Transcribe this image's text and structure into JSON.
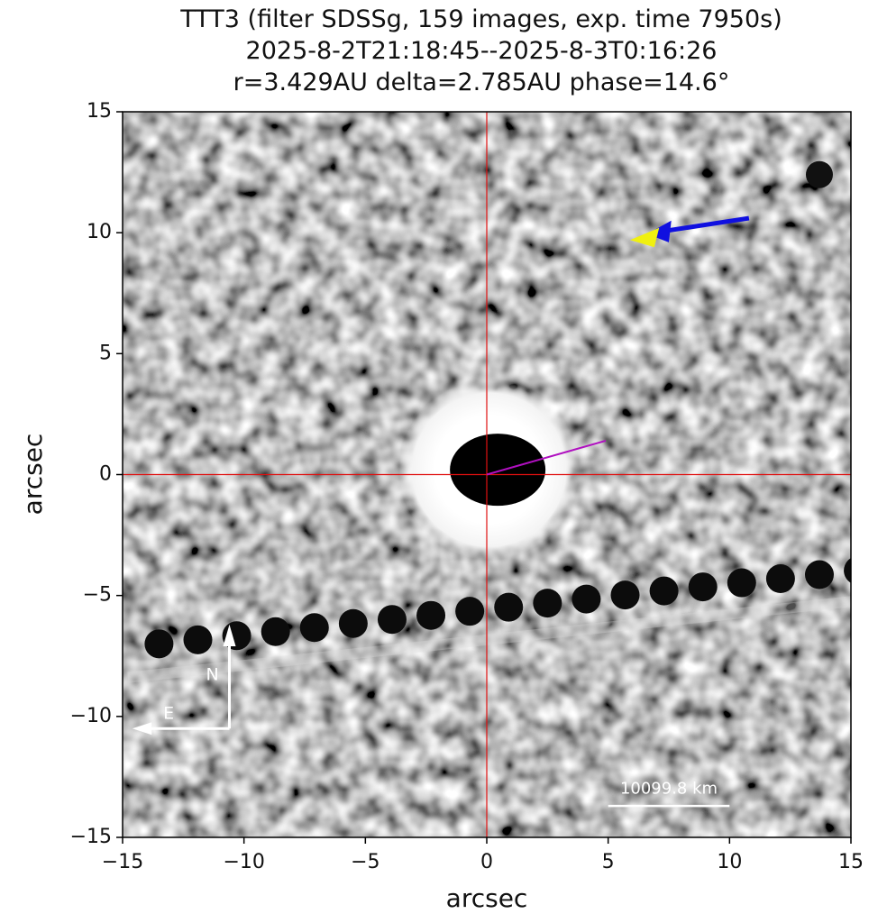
{
  "chart_data": {
    "type": "image",
    "title": [
      "TTT3 (filter SDSSg, 159 images, exp. time 7950s)",
      "2025-8-2T21:18:45--2025-8-3T0:16:26",
      "r=3.429AU delta=2.785AU phase=14.6°"
    ],
    "x_label": "arcsec",
    "y_label": "arcsec",
    "xlim": [
      -15,
      15
    ],
    "ylim": [
      -15,
      15
    ],
    "xticks": [
      {
        "value": -15,
        "label": "−15"
      },
      {
        "value": -10,
        "label": "−10"
      },
      {
        "value": -5,
        "label": "−5"
      },
      0,
      5,
      10,
      15
    ],
    "yticks": [
      {
        "value": -15,
        "label": "−15"
      },
      {
        "value": -10,
        "label": "−10"
      },
      {
        "value": -5,
        "label": "−5"
      },
      0,
      5,
      10,
      15
    ],
    "annotations": {
      "north": "N",
      "east": "E",
      "scale_bar": "10099.8 km"
    }
  }
}
